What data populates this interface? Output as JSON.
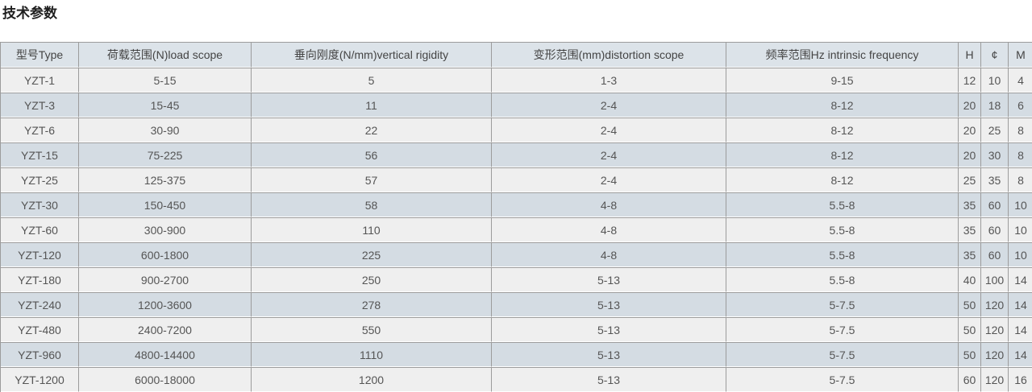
{
  "title": "技术参数",
  "table": {
    "headers": [
      "型号Type",
      "荷载范围(N)load scope",
      "垂向刚度(N/mm)vertical rigidity",
      "变形范围(mm)distortion scope",
      "频率范围Hz intrinsic frequency",
      "H",
      "¢",
      "M"
    ],
    "rows": [
      [
        "YZT-1",
        "5-15",
        "5",
        "1-3",
        "9-15",
        "12",
        "10",
        "4"
      ],
      [
        "YZT-3",
        "15-45",
        "11",
        "2-4",
        "8-12",
        "20",
        "18",
        "6"
      ],
      [
        "YZT-6",
        "30-90",
        "22",
        "2-4",
        "8-12",
        "20",
        "25",
        "8"
      ],
      [
        "YZT-15",
        "75-225",
        "56",
        "2-4",
        "8-12",
        "20",
        "30",
        "8"
      ],
      [
        "YZT-25",
        "125-375",
        "57",
        "2-4",
        "8-12",
        "25",
        "35",
        "8"
      ],
      [
        "YZT-30",
        "150-450",
        "58",
        "4-8",
        "5.5-8",
        "35",
        "60",
        "10"
      ],
      [
        "YZT-60",
        "300-900",
        "110",
        "4-8",
        "5.5-8",
        "35",
        "60",
        "10"
      ],
      [
        "YZT-120",
        "600-1800",
        "225",
        "4-8",
        "5.5-8",
        "35",
        "60",
        "10"
      ],
      [
        "YZT-180",
        "900-2700",
        "250",
        "5-13",
        "5.5-8",
        "40",
        "100",
        "14"
      ],
      [
        "YZT-240",
        "1200-3600",
        "278",
        "5-13",
        "5-7.5",
        "50",
        "120",
        "14"
      ],
      [
        "YZT-480",
        "2400-7200",
        "550",
        "5-13",
        "5-7.5",
        "50",
        "120",
        "14"
      ],
      [
        "YZT-960",
        "4800-14400",
        "1110",
        "5-13",
        "5-7.5",
        "50",
        "120",
        "14"
      ],
      [
        "YZT-1200",
        "6000-18000",
        "1200",
        "5-13",
        "5-7.5",
        "60",
        "120",
        "16"
      ]
    ],
    "colors": {
      "header_bg": "#dce3e9",
      "row_alt_bg": "#d4dce3",
      "row_normal_bg": "#efefef",
      "border": "#9c9c9c",
      "row_separator": "#ffffff",
      "header_text": "#444444",
      "cell_text": "#555555"
    }
  }
}
